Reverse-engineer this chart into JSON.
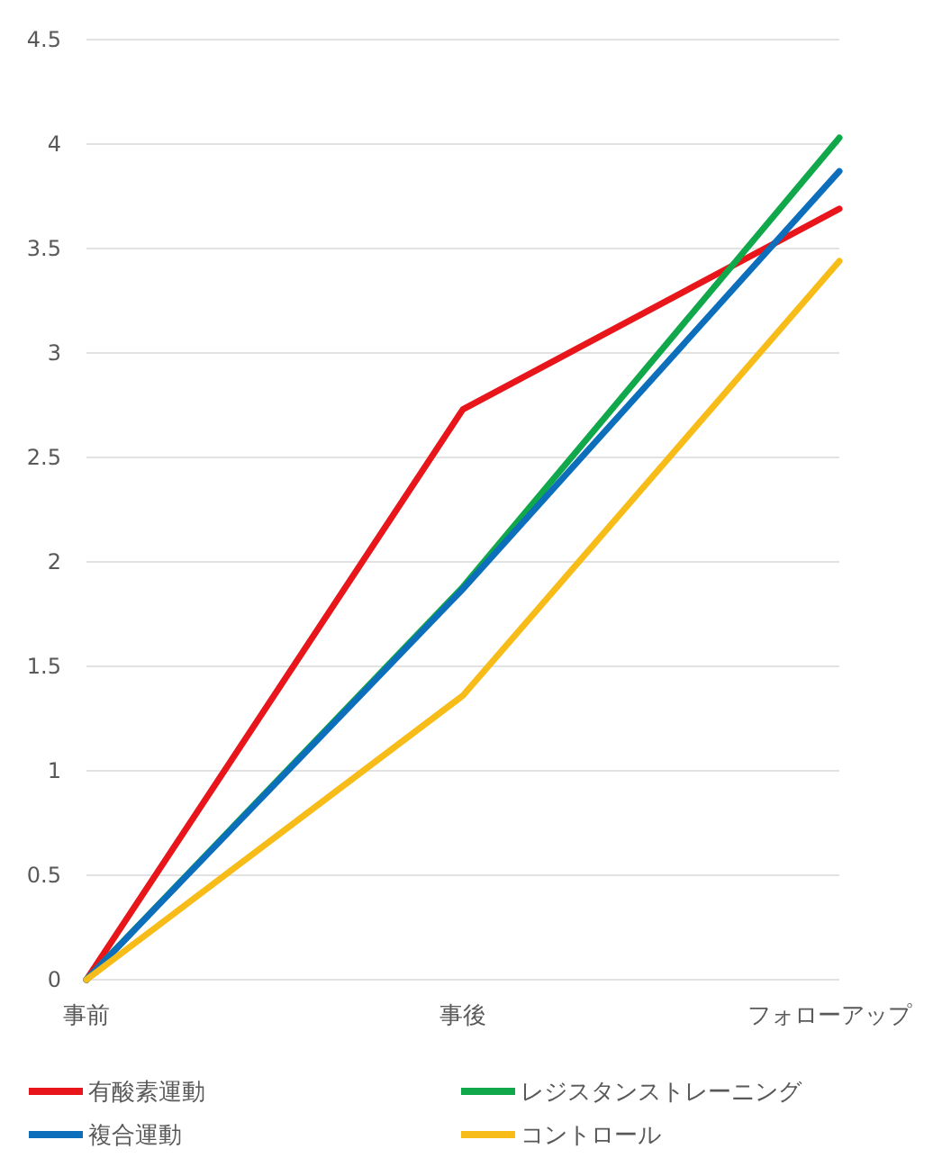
{
  "chart_data": {
    "type": "line",
    "categories": [
      "事前",
      "事後",
      "フォローアップ"
    ],
    "series": [
      {
        "name": "有酸素運動",
        "color": "#e8151b",
        "values": [
          0,
          2.73,
          3.69
        ]
      },
      {
        "name": "レジスタンストレーニング",
        "color": "#10a84a",
        "values": [
          0,
          1.88,
          4.03
        ]
      },
      {
        "name": "複合運動",
        "color": "#0d6fbb",
        "values": [
          0,
          1.87,
          3.87
        ]
      },
      {
        "name": "コントロール",
        "color": "#f7bc18",
        "values": [
          0,
          1.36,
          3.44
        ]
      }
    ],
    "ylim": [
      0,
      4.5
    ],
    "yticks": [
      0,
      0.5,
      1,
      1.5,
      2,
      2.5,
      3,
      3.5,
      4,
      4.5
    ],
    "grid": "y",
    "legend": "bottom",
    "marker": "none",
    "line_style": "solid"
  }
}
